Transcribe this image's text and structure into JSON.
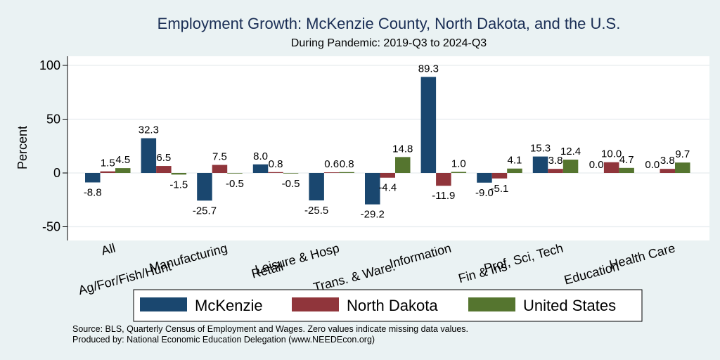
{
  "chart_data": {
    "type": "bar",
    "title": "Employment Growth: McKenzie County, North Dakota, and the U.S.",
    "subtitle": "During Pandemic: 2019-Q3 to 2024-Q3",
    "ylabel": "Percent",
    "xlabel": "",
    "ylim": [
      -60,
      110
    ],
    "yticks": [
      100,
      50,
      0,
      -50
    ],
    "categories": [
      "All",
      "Ag/For/Fish/Hunt",
      "Manufacturing",
      "Retail",
      "Leisure & Hosp",
      "Trans. & Ware.",
      "Information",
      "Fin & Ins",
      "Prof, Sci, Tech",
      "Education",
      "Health Care"
    ],
    "series": [
      {
        "name": "McKenzie",
        "color": "#1a476f",
        "values": [
          -8.8,
          32.3,
          -25.7,
          8.0,
          -25.5,
          -29.2,
          89.3,
          -9.0,
          15.3,
          0.0,
          0.0
        ],
        "labels": [
          "-8.8",
          "32.3",
          "-25.7",
          "8.0",
          "-25.5",
          "-29.2",
          "89.3",
          "-9.0",
          "15.3",
          "0.0",
          "0.0"
        ]
      },
      {
        "name": "North Dakota",
        "color": "#90353b",
        "values": [
          1.5,
          6.5,
          7.5,
          0.8,
          0.6,
          -4.4,
          -11.9,
          -5.1,
          3.8,
          10.0,
          3.8
        ],
        "labels": [
          "1.5",
          "6.5",
          "7.5",
          "0.8",
          "0.6",
          "-4.4",
          "-11.9",
          "-5.1",
          "3.8",
          "10.0",
          "3.8"
        ]
      },
      {
        "name": "United States",
        "color": "#55752f",
        "values": [
          4.5,
          -1.5,
          -0.5,
          -0.5,
          0.8,
          14.8,
          1.0,
          4.1,
          12.4,
          4.7,
          9.7
        ],
        "labels": [
          "4.5",
          "-1.5",
          "-0.5",
          "-0.5",
          "0.8",
          "14.8",
          "1.0",
          "4.1",
          "12.4",
          "4.7",
          "9.7"
        ]
      }
    ],
    "legend": {
      "position": "bottom",
      "entries": [
        "McKenzie",
        "North Dakota",
        "United States"
      ]
    },
    "grid": true,
    "notes": [
      "Source: BLS, Quarterly Census of Employment and Wages. Zero values indicate missing data values.",
      "Produced by: National Economic Education Delegation (www.NEEDEcon.org)"
    ]
  }
}
